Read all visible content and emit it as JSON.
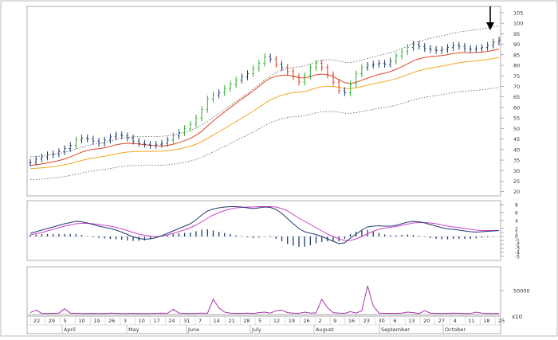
{
  "chart_data": {
    "type": "ohlc",
    "price_axis": {
      "ticks": [
        "105",
        "100",
        "95",
        "90",
        "85",
        "80",
        "75",
        "70",
        "65",
        "60",
        "55",
        "50",
        "45",
        "40",
        "35",
        "30",
        "25",
        "20"
      ],
      "ylim": [
        18,
        108
      ]
    },
    "macd_axis": {
      "ticks": [
        "8",
        "6",
        "4",
        "2",
        "1",
        "0",
        "-1",
        "-2",
        "-3",
        "-4",
        "-5"
      ],
      "ylim": [
        -6,
        9
      ]
    },
    "volume_axis": {
      "ticks": [
        "50000"
      ],
      "ylim": [
        0,
        100000
      ]
    },
    "scale_note": "x10",
    "x_axis": {
      "day_labels": [
        "22",
        "29",
        "5",
        "10",
        "19",
        "26",
        "3",
        "10",
        "17",
        "24",
        "31",
        "7",
        "14",
        "21",
        "28",
        "5",
        "12",
        "19",
        "26",
        "2",
        "9",
        "16",
        "23",
        "30",
        "6",
        "13",
        "20",
        "27",
        "4",
        "11",
        "18",
        "25"
      ],
      "month_labels": [
        "April",
        "May",
        "June",
        "July",
        "August",
        "September",
        "October"
      ]
    },
    "price": {
      "bar_colors": {
        "up": "#33aa33",
        "down": "#dd3311",
        "neutral": "#1f3a6e"
      },
      "closes": [
        34.0,
        35.5,
        36.5,
        37.5,
        38.0,
        39.0,
        40.5,
        42.0,
        44.5,
        45.5,
        45.0,
        44.0,
        43.0,
        44.5,
        46.0,
        47.0,
        46.5,
        45.5,
        44.0,
        43.0,
        42.5,
        42.0,
        42.5,
        43.0,
        44.5,
        46.5,
        48.0,
        50.0,
        52.0,
        55.0,
        59.0,
        64.0,
        66.0,
        67.0,
        69.0,
        71.0,
        73.0,
        74.5,
        76.0,
        78.5,
        81.0,
        84.0,
        83.0,
        80.5,
        79.0,
        77.0,
        74.5,
        72.0,
        75.0,
        79.0,
        81.0,
        79.0,
        75.5,
        72.0,
        68.0,
        67.0,
        71.0,
        76.0,
        79.0,
        80.0,
        80.5,
        81.0,
        80.5,
        82.0,
        84.5,
        86.5,
        88.5,
        90.0,
        89.0,
        88.0,
        87.5,
        87.0,
        87.5,
        88.5,
        89.5,
        89.0,
        88.0,
        87.5,
        88.0,
        88.5,
        89.5,
        91.0,
        92.0
      ],
      "ma_fast_color": "#dd4422",
      "ma_slow_color": "#f5a623",
      "bands_color": "#444444"
    },
    "macd": {
      "line_color": "#1f3a6e",
      "signal_color": "#cc44cc",
      "hist_color": "#1f3a6e",
      "macd": [
        0.8,
        1.2,
        1.6,
        2.0,
        2.4,
        2.8,
        3.2,
        3.5,
        3.8,
        3.7,
        3.4,
        3.0,
        2.6,
        2.3,
        2.0,
        1.6,
        1.1,
        0.5,
        -0.1,
        -0.5,
        -0.7,
        -0.6,
        -0.3,
        0.2,
        0.8,
        1.4,
        2.0,
        2.6,
        3.2,
        4.2,
        5.4,
        6.4,
        6.9,
        7.2,
        7.4,
        7.5,
        7.5,
        7.4,
        7.2,
        7.0,
        7.2,
        7.4,
        7.3,
        6.8,
        5.8,
        4.5,
        3.2,
        2.0,
        1.2,
        0.8,
        0.5,
        0.0,
        -0.6,
        -1.2,
        -1.8,
        -1.6,
        -0.4,
        0.6,
        1.6,
        2.4,
        2.6,
        2.7,
        2.6,
        2.6,
        2.8,
        3.2,
        3.6,
        3.8,
        3.7,
        3.4,
        3.0,
        2.6,
        2.2,
        1.9,
        1.8,
        1.6,
        1.4,
        1.2,
        1.1,
        1.2,
        1.3,
        1.4,
        1.5
      ],
      "signal": [
        0.4,
        0.7,
        1.0,
        1.4,
        1.8,
        2.2,
        2.6,
        2.9,
        3.2,
        3.3,
        3.3,
        3.2,
        3.0,
        2.8,
        2.6,
        2.3,
        1.9,
        1.5,
        1.0,
        0.6,
        0.3,
        0.1,
        0.0,
        0.1,
        0.4,
        0.8,
        1.2,
        1.7,
        2.2,
        2.9,
        3.7,
        4.6,
        5.4,
        6.0,
        6.5,
        6.9,
        7.2,
        7.3,
        7.4,
        7.4,
        7.5,
        7.5,
        7.5,
        7.4,
        7.0,
        6.4,
        5.5,
        4.6,
        3.8,
        3.0,
        2.2,
        1.4,
        0.6,
        0.0,
        -0.6,
        -1.0,
        -1.0,
        -0.6,
        0.0,
        0.7,
        1.3,
        1.8,
        2.1,
        2.3,
        2.5,
        2.8,
        3.1,
        3.4,
        3.5,
        3.5,
        3.4,
        3.2,
        2.9,
        2.6,
        2.4,
        2.2,
        2.0,
        1.8,
        1.6,
        1.5,
        1.5,
        1.5,
        1.5
      ],
      "hist": [
        0.4,
        0.5,
        0.6,
        0.6,
        0.6,
        0.6,
        0.6,
        0.6,
        0.6,
        0.4,
        0.1,
        -0.2,
        -0.4,
        -0.5,
        -0.6,
        -0.7,
        -0.8,
        -1.0,
        -1.1,
        -1.1,
        -1.0,
        -0.7,
        -0.3,
        0.1,
        0.4,
        0.6,
        0.8,
        0.9,
        1.0,
        1.3,
        1.7,
        1.8,
        1.5,
        1.2,
        0.9,
        0.6,
        0.3,
        0.1,
        -0.2,
        -0.4,
        -0.3,
        -0.1,
        -0.2,
        -0.6,
        -1.2,
        -1.9,
        -2.3,
        -2.6,
        -2.6,
        -2.2,
        -1.7,
        -1.4,
        -1.2,
        -1.2,
        -1.2,
        -0.6,
        0.6,
        1.2,
        1.6,
        1.7,
        1.3,
        0.9,
        0.5,
        0.3,
        0.3,
        0.4,
        0.5,
        0.4,
        0.2,
        -0.1,
        -0.4,
        -0.6,
        -0.7,
        -0.7,
        -0.6,
        -0.6,
        -0.6,
        -0.6,
        -0.5,
        -0.3,
        -0.2,
        -0.1,
        0.0
      ]
    },
    "volume": {
      "line_color": "#aa33aa",
      "values": [
        4000,
        9000,
        2500,
        2000,
        2500,
        3000,
        12000,
        3000,
        2500,
        2000,
        2000,
        2500,
        2000,
        2000,
        3000,
        2500,
        2000,
        2000,
        2500,
        2000,
        2000,
        2000,
        2500,
        3000,
        2500,
        11000,
        3000,
        2500,
        2000,
        2500,
        3000,
        2500,
        32000,
        14000,
        5000,
        3000,
        2500,
        2500,
        3000,
        2000,
        4000,
        5000,
        3000,
        8000,
        9000,
        4000,
        3000,
        2500,
        5000,
        3000,
        3500,
        32000,
        14000,
        4000,
        3000,
        2500,
        6000,
        3000,
        8000,
        60000,
        18000,
        3000,
        2500,
        2500,
        2500,
        3000,
        5000,
        4000,
        2000,
        8000,
        3000,
        2500,
        2000,
        2500,
        3000,
        2500,
        2000,
        2000,
        5000,
        3000,
        2500,
        2000,
        2500
      ]
    },
    "annotation": {
      "type": "down-arrow",
      "color": "#000000"
    }
  }
}
